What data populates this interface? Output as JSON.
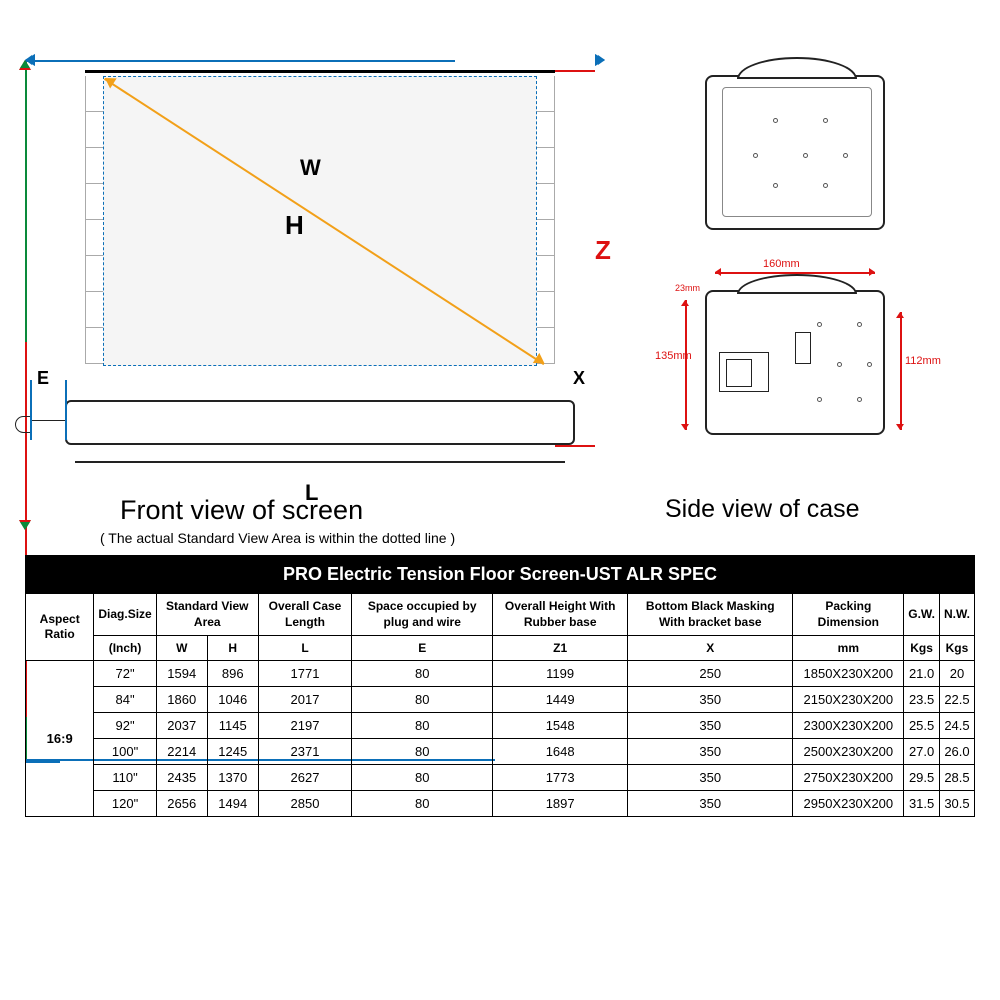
{
  "diagram": {
    "front_title": "Front view of screen",
    "front_subtitle": "( The actual Standard View Area is within the dotted line )",
    "side_title": "Side view of case",
    "labels": {
      "W": "W",
      "H": "H",
      "Z": "Z",
      "X": "X",
      "L": "L",
      "E": "E"
    },
    "side_dims": {
      "d160": "160mm",
      "d23": "23mm",
      "d135": "135mm",
      "d112": "112mm"
    },
    "colors": {
      "blue": "#0b6fb8",
      "green": "#0a8a3a",
      "red": "#d11",
      "orange": "#f2a019",
      "black": "#000000"
    }
  },
  "table": {
    "title": "PRO Electric Tension Floor Screen-UST ALR  SPEC",
    "headers": {
      "aspect": "Aspect Ratio",
      "diag": "Diag.Size",
      "view_area": "Standard View Area",
      "case_len": "Overall Case Length",
      "space": "Space occupied by plug and wire",
      "height": "Overall Height With Rubber base",
      "masking": "Bottom Black Masking With bracket base",
      "packing": "Packing Dimension",
      "gw": "G.W.",
      "nw": "N.W."
    },
    "units": {
      "diag": "(Inch)",
      "w": "W",
      "h": "H",
      "l": "L",
      "e": "E",
      "z1": "Z1",
      "x": "X",
      "mm": "mm",
      "kgs1": "Kgs",
      "kgs2": "Kgs"
    },
    "aspect_ratio": "16:9",
    "rows": [
      {
        "diag": "72\"",
        "w": "1594",
        "h": "896",
        "l": "1771",
        "e": "80",
        "z1": "1199",
        "x": "250",
        "pack": "1850X230X200",
        "gw": "21.0",
        "nw": "20"
      },
      {
        "diag": "84\"",
        "w": "1860",
        "h": "1046",
        "l": "2017",
        "e": "80",
        "z1": "1449",
        "x": "350",
        "pack": "2150X230X200",
        "gw": "23.5",
        "nw": "22.5"
      },
      {
        "diag": "92\"",
        "w": "2037",
        "h": "1145",
        "l": "2197",
        "e": "80",
        "z1": "1548",
        "x": "350",
        "pack": "2300X230X200",
        "gw": "25.5",
        "nw": "24.5"
      },
      {
        "diag": "100\"",
        "w": "2214",
        "h": "1245",
        "l": "2371",
        "e": "80",
        "z1": "1648",
        "x": "350",
        "pack": "2500X230X200",
        "gw": "27.0",
        "nw": "26.0"
      },
      {
        "diag": "110\"",
        "w": "2435",
        "h": "1370",
        "l": "2627",
        "e": "80",
        "z1": "1773",
        "x": "350",
        "pack": "2750X230X200",
        "gw": "29.5",
        "nw": "28.5"
      },
      {
        "diag": "120\"",
        "w": "2656",
        "h": "1494",
        "l": "2850",
        "e": "80",
        "z1": "1897",
        "x": "350",
        "pack": "2950X230X200",
        "gw": "31.5",
        "nw": "30.5"
      }
    ]
  }
}
